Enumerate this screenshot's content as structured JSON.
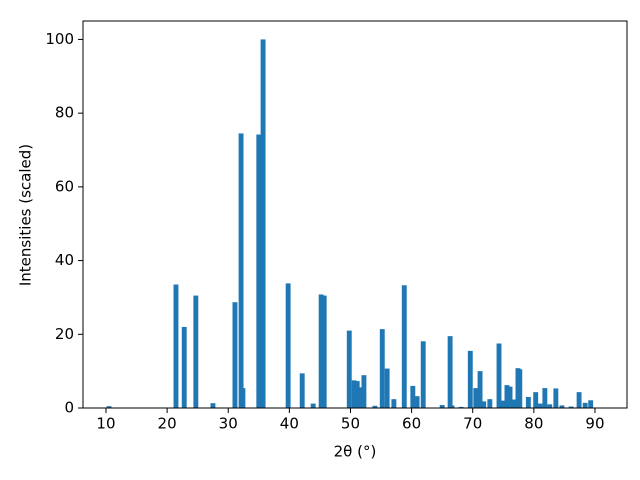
{
  "chart_data": {
    "type": "bar",
    "xlabel": "2θ (°)",
    "ylabel": "Intensities (scaled)",
    "x": [
      10.5,
      21.45,
      22.8,
      24.7,
      27.5,
      31.1,
      32.1,
      32.4,
      35.0,
      35.7,
      39.8,
      42.1,
      43.9,
      45.2,
      45.7,
      49.8,
      50.6,
      51.1,
      51.7,
      52.2,
      54.0,
      55.2,
      56.0,
      57.1,
      58.8,
      60.2,
      60.9,
      61.9,
      65.0,
      66.3,
      66.6,
      68.1,
      69.6,
      70.5,
      71.2,
      71.8,
      72.8,
      74.3,
      74.9,
      75.6,
      76.1,
      76.8,
      77.4,
      77.7,
      79.1,
      80.3,
      81.0,
      81.8,
      82.6,
      83.6,
      84.6,
      86.1,
      87.4,
      88.4,
      89.3
    ],
    "values": [
      0.5,
      33.5,
      22,
      30.5,
      1.3,
      28.7,
      74.5,
      5.4,
      74.2,
      100,
      33.8,
      9.4,
      1.2,
      30.8,
      30.5,
      21,
      7.5,
      7.3,
      5.6,
      8.9,
      0.6,
      21.4,
      10.7,
      2.4,
      33.3,
      6,
      3.2,
      18.1,
      0.8,
      19.5,
      0.7,
      0.3,
      15.5,
      5.4,
      10,
      1.8,
      2.4,
      17.5,
      2,
      6.2,
      5.8,
      2.3,
      10.8,
      10.5,
      3,
      4.3,
      1.2,
      5.4,
      1,
      5.3,
      0.7,
      0.4,
      4.3,
      1.4,
      2.1
    ],
    "color": "#1f77b4",
    "xlim": [
      6.24,
      95.24
    ],
    "xticks": [
      10,
      20,
      30,
      40,
      50,
      60,
      70,
      80,
      90
    ],
    "ylim": [
      0,
      105
    ],
    "yticks": [
      0,
      20,
      40,
      60,
      80,
      100
    ]
  }
}
